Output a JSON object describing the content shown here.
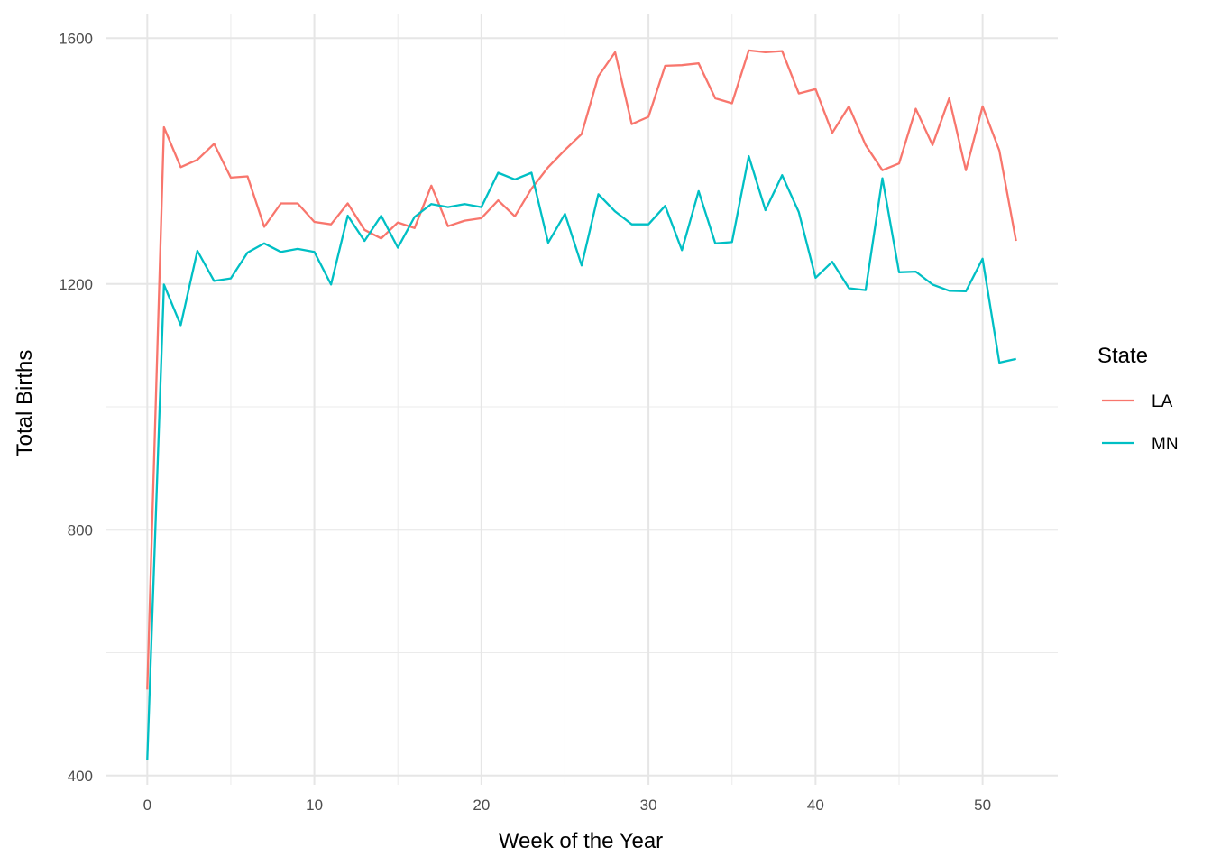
{
  "chart_data": {
    "type": "line",
    "xlabel": "Week of the Year",
    "ylabel": "Total Births",
    "xlim": [
      -2.5,
      54.5
    ],
    "ylim": [
      385,
      1600
    ],
    "x_ticks": [
      0,
      10,
      20,
      30,
      40,
      50
    ],
    "y_ticks": [
      400,
      800,
      1200,
      1600
    ],
    "x_minor_ticks": [
      5,
      15,
      25,
      35,
      45
    ],
    "y_minor_ticks": [
      600,
      1000,
      1400
    ],
    "grid": true,
    "legend": {
      "title": "State",
      "position": "right"
    },
    "x": [
      0,
      1,
      2,
      3,
      4,
      5,
      6,
      7,
      8,
      9,
      10,
      11,
      12,
      13,
      14,
      15,
      16,
      17,
      18,
      19,
      20,
      21,
      22,
      23,
      24,
      25,
      26,
      27,
      28,
      29,
      30,
      31,
      32,
      33,
      34,
      35,
      36,
      37,
      38,
      39,
      40,
      41,
      42,
      43,
      44,
      45,
      46,
      47,
      48,
      49,
      50,
      51,
      52
    ],
    "series": [
      {
        "name": "LA",
        "color": "#F8766D",
        "values": [
          540,
          1455,
          1390,
          1402,
          1428,
          1373,
          1375,
          1293,
          1331,
          1331,
          1301,
          1297,
          1331,
          1288,
          1274,
          1300,
          1291,
          1360,
          1294,
          1303,
          1307,
          1336,
          1310,
          1355,
          1390,
          1418,
          1444,
          1538,
          1577,
          1460,
          1472,
          1555,
          1556,
          1559,
          1502,
          1494,
          1580,
          1577,
          1579,
          1510,
          1517,
          1446,
          1489,
          1426,
          1385,
          1396,
          1485,
          1426,
          1502,
          1385,
          1489,
          1417,
          1270
        ]
      },
      {
        "name": "MN",
        "color": "#00BFC4",
        "values": [
          426,
          1199,
          1133,
          1254,
          1205,
          1209,
          1251,
          1266,
          1252,
          1257,
          1252,
          1199,
          1311,
          1270,
          1311,
          1259,
          1309,
          1330,
          1325,
          1330,
          1325,
          1381,
          1370,
          1381,
          1267,
          1314,
          1230,
          1346,
          1318,
          1297,
          1297,
          1327,
          1255,
          1351,
          1266,
          1268,
          1408,
          1320,
          1377,
          1317,
          1210,
          1236,
          1193,
          1190,
          1372,
          1219,
          1220,
          1199,
          1189,
          1188,
          1241,
          1072,
          1078
        ]
      }
    ]
  }
}
